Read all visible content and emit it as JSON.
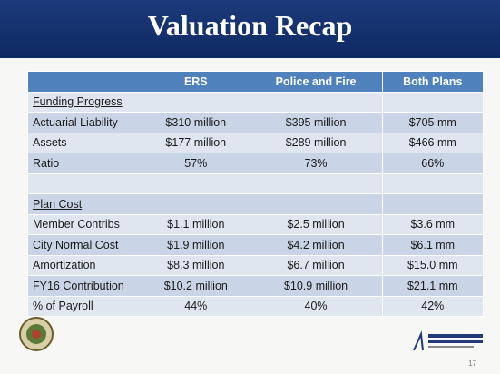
{
  "header": {
    "title": "Valuation Recap"
  },
  "table": {
    "columns": [
      "ERS",
      "Police and Fire",
      "Both Plans"
    ],
    "sections": [
      {
        "title": "Funding Progress",
        "rows": [
          {
            "label": "Actuarial Liability",
            "values": [
              "$310 million",
              "$395 million",
              "$705 mm"
            ]
          },
          {
            "label": "Assets",
            "values": [
              "$177 million",
              "$289 million",
              "$466 mm"
            ]
          },
          {
            "label": "Ratio",
            "values": [
              "57%",
              "73%",
              "66%"
            ]
          }
        ]
      },
      {
        "title": "Plan Cost",
        "rows": [
          {
            "label": "Member Contribs",
            "values": [
              "$1.1 million",
              "$2.5 million",
              "$3.6 mm"
            ]
          },
          {
            "label": "City Normal Cost",
            "values": [
              "$1.9 million",
              "$4.2 million",
              "$6.1 mm"
            ]
          },
          {
            "label": "Amortization",
            "values": [
              "$8.3 million",
              "$6.7 million",
              "$15.0 mm"
            ]
          },
          {
            "label": "FY16 Contribution",
            "values": [
              "$10.2 million",
              "$10.9 million",
              "$21.1 mm"
            ]
          },
          {
            "label": "% of Payroll",
            "values": [
              "44%",
              "40%",
              "42%"
            ]
          }
        ]
      }
    ]
  },
  "footer": {
    "page": "17"
  }
}
